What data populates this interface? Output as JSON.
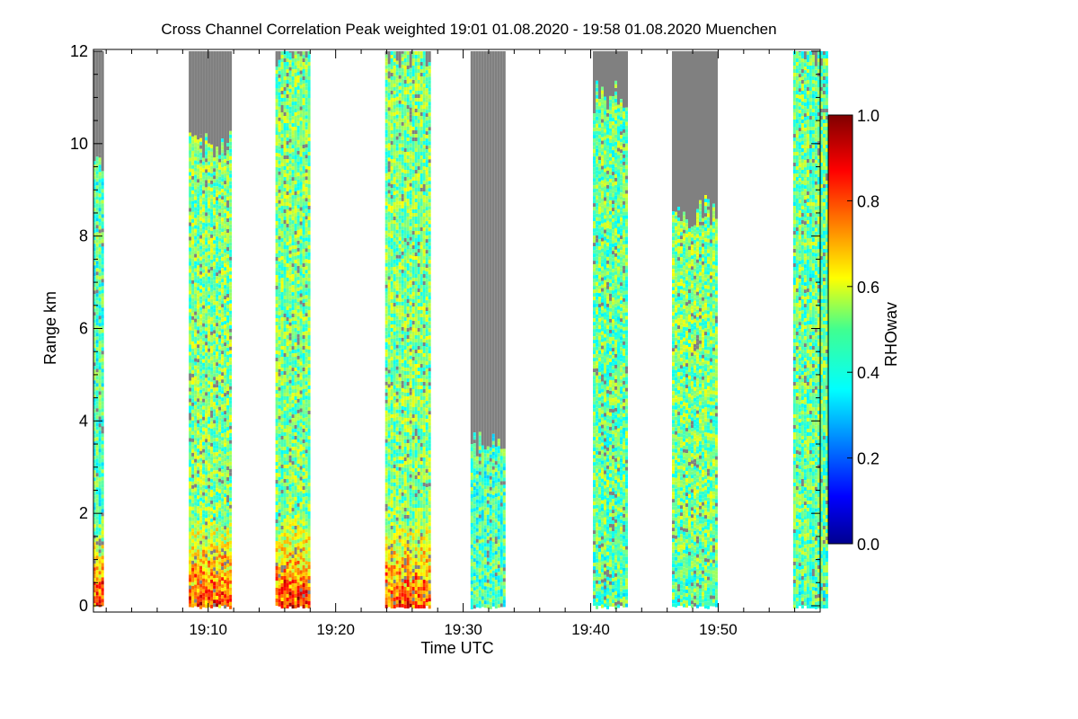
{
  "chart_data": {
    "type": "heatmap",
    "title": "Cross Channel Correlation Peak weighted   19:01 01.08.2020 - 19:58 01.08.2020 Muenchen",
    "xlabel": "Time UTC",
    "ylabel": "Range km",
    "xlim": [
      "19:01",
      "19:58"
    ],
    "ylim": [
      0,
      12
    ],
    "x_ticks": [
      "19:10",
      "19:20",
      "19:30",
      "19:40",
      "19:50"
    ],
    "y_ticks": [
      "0",
      "2",
      "4",
      "6",
      "8",
      "10",
      "12"
    ],
    "colorbar": {
      "label": "RHOwav",
      "range": [
        0.0,
        1.0
      ],
      "ticks": [
        "0.0",
        "0.2",
        "0.4",
        "0.6",
        "0.8",
        "1.0"
      ],
      "colormap": "jet"
    },
    "missing_color": "#808080",
    "segments": [
      {
        "start": "19:01.4",
        "end": "19:02.1",
        "near_range_value": 0.9,
        "signal_top_km": 9.5,
        "background": 0.45
      },
      {
        "start": "19:08.9",
        "end": "19:12.2",
        "near_range_value": 0.85,
        "signal_top_km": 10.0,
        "background": 0.5
      },
      {
        "start": "19:15.7",
        "end": "19:18.4",
        "near_range_value": 0.88,
        "signal_top_km": 12.0,
        "background": 0.5
      },
      {
        "start": "19:24.3",
        "end": "19:27.7",
        "near_range_value": 0.85,
        "signal_top_km": 12.0,
        "background": 0.5
      },
      {
        "start": "19:31.0",
        "end": "19:33.6",
        "near_range_value": 0.45,
        "signal_top_km": 3.5,
        "background": 0.45
      },
      {
        "start": "19:40.6",
        "end": "19:43.2",
        "near_range_value": 0.45,
        "signal_top_km": 11.0,
        "background": 0.48
      },
      {
        "start": "19:46.8",
        "end": "19:50.2",
        "near_range_value": 0.45,
        "signal_top_km": 8.5,
        "background": 0.5
      },
      {
        "start": "19:56.3",
        "end": "19:58.9",
        "near_range_value": 0.45,
        "signal_top_km": 12.0,
        "background": 0.48
      }
    ]
  }
}
